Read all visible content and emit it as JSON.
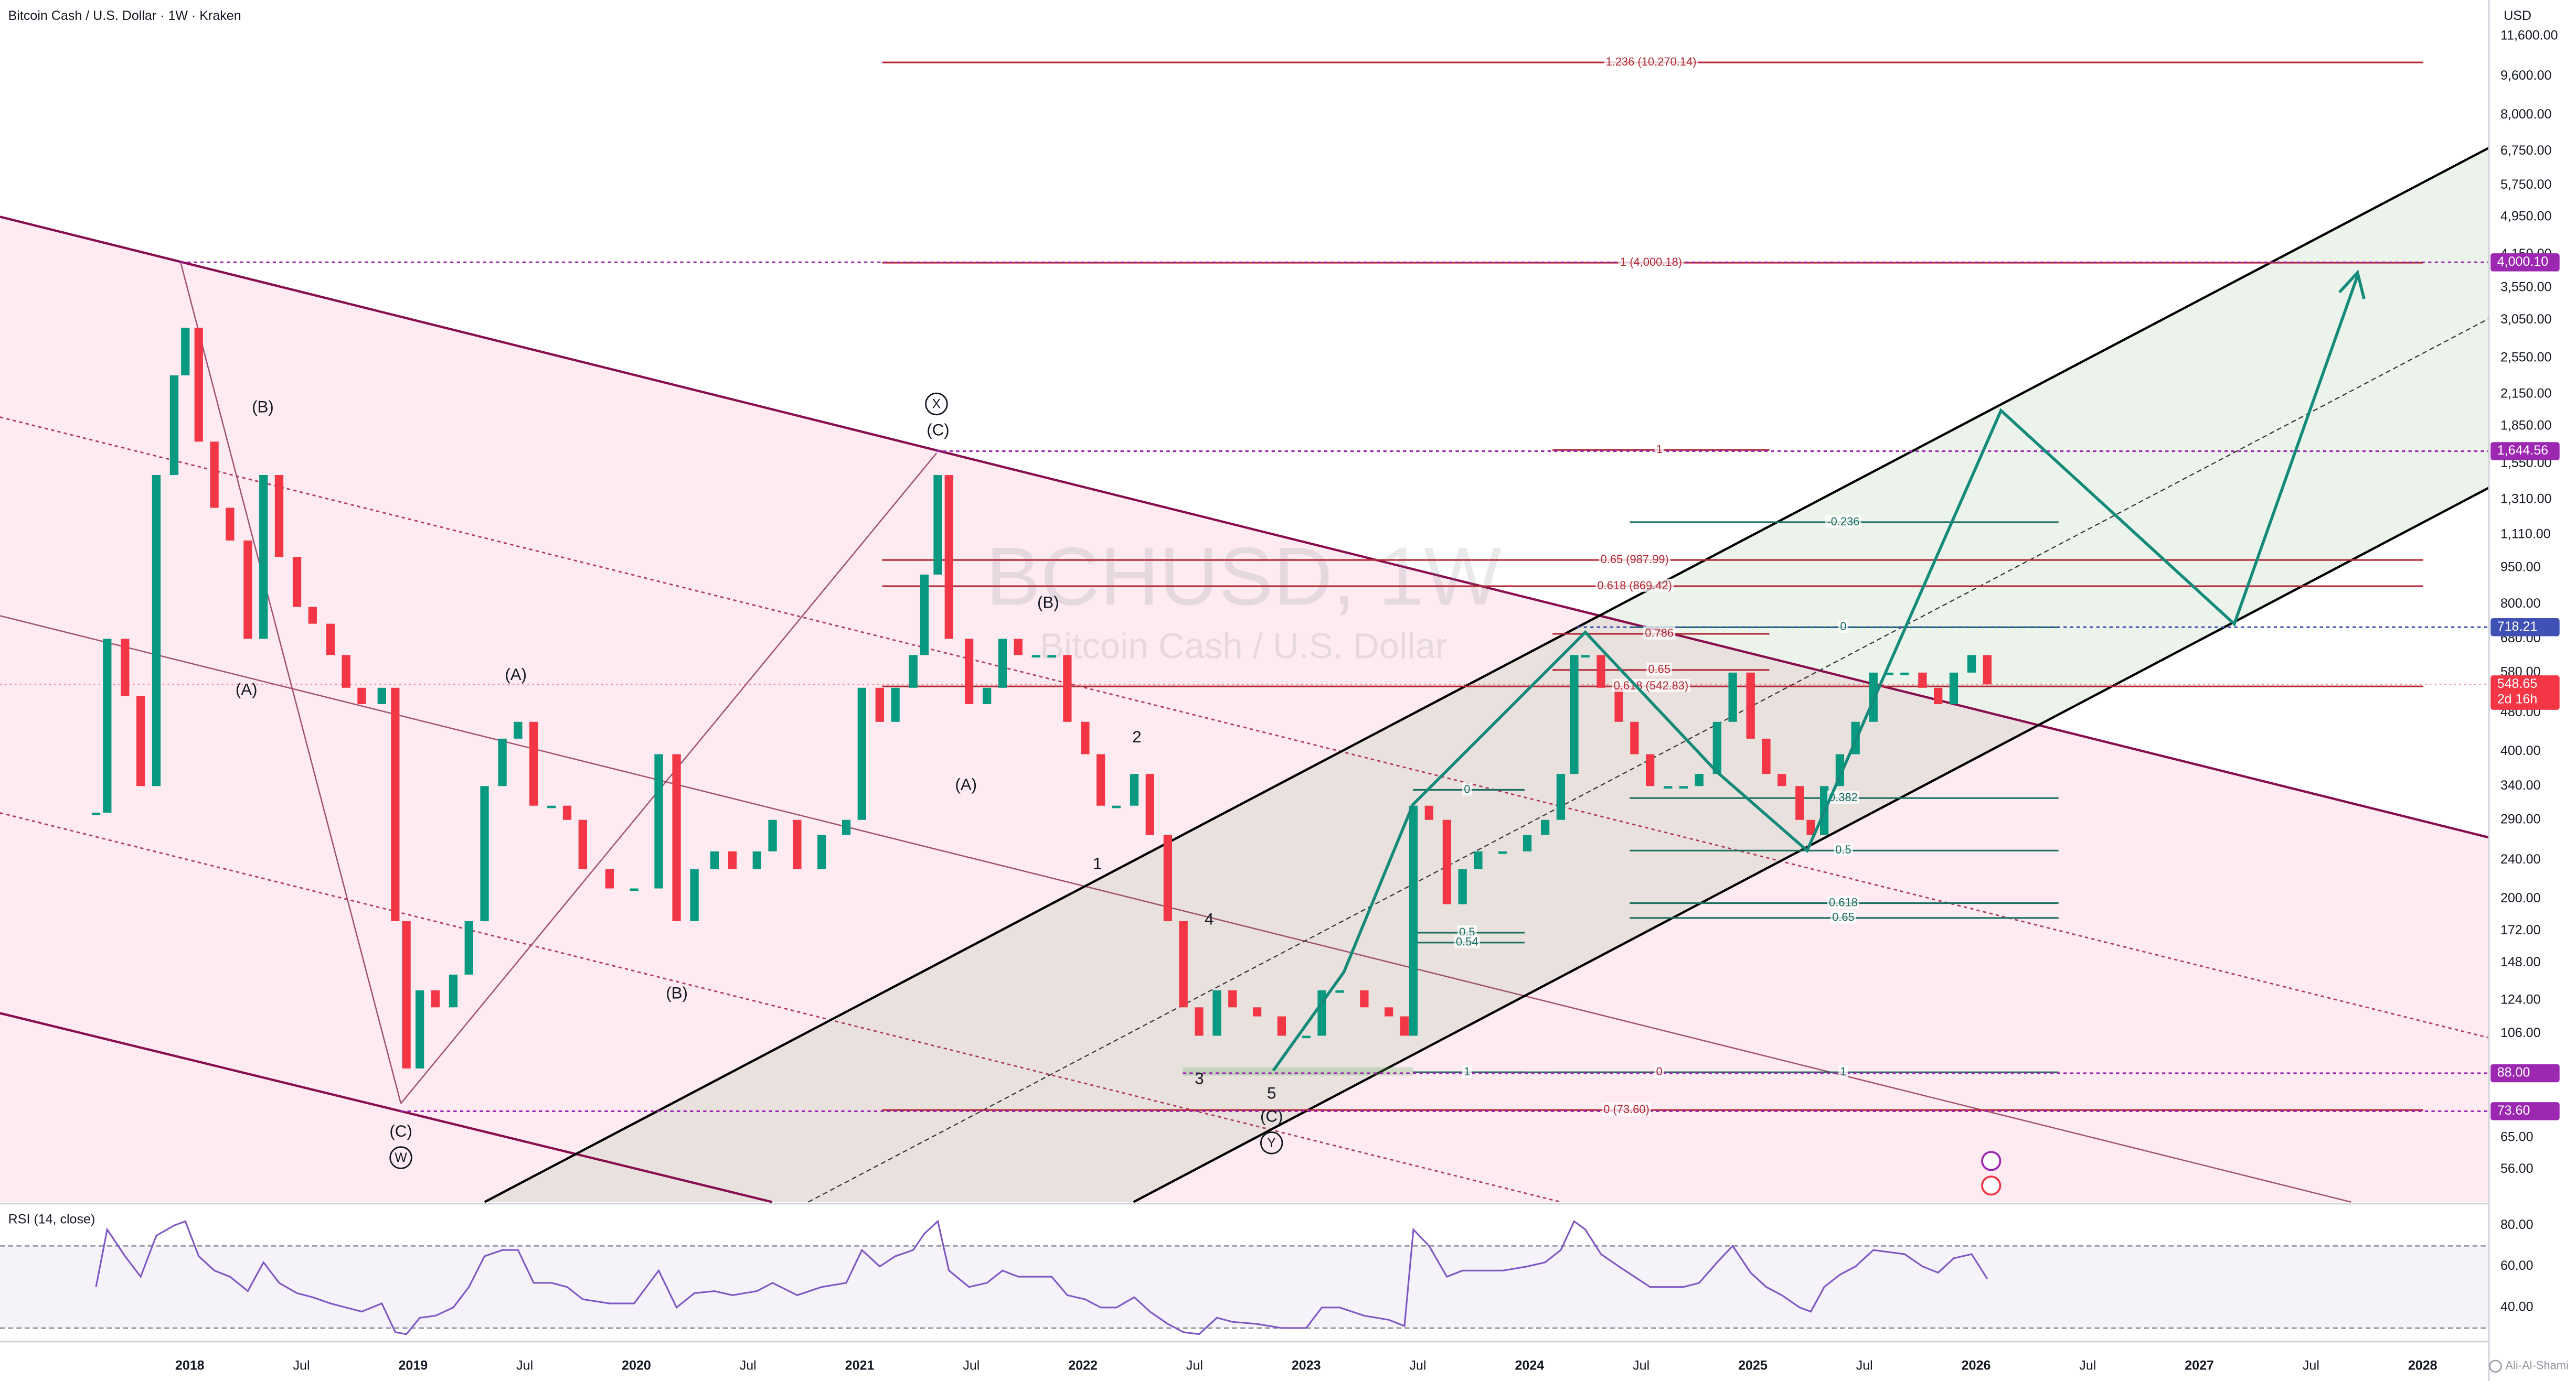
{
  "chart_data": [
    {
      "type": "candlestick",
      "title": "Bitcoin Cash / U.S. Dollar · 1W · Kraken",
      "currency": "USD",
      "log_scale": true,
      "grid": false,
      "up_color": "#089981",
      "down_color": "#f23645",
      "x": [
        2017.58,
        2017.63,
        2017.71,
        2017.78,
        2017.85,
        2017.93,
        2017.98,
        2018.04,
        2018.11,
        2018.18,
        2018.26,
        2018.33,
        2018.4,
        2018.48,
        2018.55,
        2018.63,
        2018.7,
        2018.77,
        2018.86,
        2018.92,
        2018.97,
        2019.03,
        2019.1,
        2019.18,
        2019.25,
        2019.32,
        2019.4,
        2019.47,
        2019.54,
        2019.62,
        2019.69,
        2019.76,
        2019.88,
        2019.99,
        2020.1,
        2020.18,
        2020.26,
        2020.35,
        2020.43,
        2020.54,
        2020.61,
        2020.72,
        2020.83,
        2020.94,
        2021.01,
        2021.09,
        2021.16,
        2021.24,
        2021.29,
        2021.35,
        2021.4,
        2021.49,
        2021.57,
        2021.64,
        2021.71,
        2021.79,
        2021.86,
        2021.93,
        2022.01,
        2022.08,
        2022.15,
        2022.23,
        2022.3,
        2022.38,
        2022.45,
        2022.52,
        2022.6,
        2022.67,
        2022.78,
        2022.89,
        2023.0,
        2023.07,
        2023.15,
        2023.26,
        2023.37,
        2023.44,
        2023.48,
        2023.55,
        2023.63,
        2023.7,
        2023.77,
        2023.88,
        2023.99,
        2024.07,
        2024.14,
        2024.2,
        2024.25,
        2024.32,
        2024.4,
        2024.47,
        2024.54,
        2024.62,
        2024.69,
        2024.76,
        2024.84,
        2024.91,
        2024.99,
        2025.06,
        2025.13,
        2025.21,
        2025.26,
        2025.32,
        2025.39,
        2025.46,
        2025.54,
        2025.61,
        2025.68,
        2025.76,
        2025.83,
        2025.9,
        2025.98,
        2026.05
      ],
      "values": [
        300,
        680,
        520,
        340,
        1470,
        2350,
        2940,
        1720,
        1260,
        1080,
        680,
        1470,
        1000,
        790,
        730,
        630,
        540,
        500,
        540,
        180,
        90,
        130,
        120,
        140,
        180,
        340,
        425,
        460,
        310,
        310,
        290,
        230,
        210,
        210,
        395,
        180,
        230,
        250,
        230,
        250,
        290,
        230,
        270,
        290,
        540,
        460,
        540,
        630,
        920,
        1470,
        680,
        500,
        540,
        680,
        630,
        630,
        630,
        460,
        395,
        310,
        310,
        360,
        270,
        180,
        120,
        105,
        130,
        120,
        115,
        105,
        105,
        130,
        130,
        120,
        115,
        105,
        310,
        290,
        195,
        230,
        250,
        250,
        270,
        290,
        360,
        630,
        630,
        540,
        460,
        395,
        340,
        340,
        340,
        360,
        460,
        580,
        425,
        360,
        340,
        290,
        270,
        340,
        395,
        460,
        580,
        580,
        580,
        540,
        500,
        580,
        630,
        548.65
      ],
      "xlim": [
        2017.15,
        2028.26
      ],
      "xticks": [
        2018,
        {
          "value": 2018.5,
          "label": "Jul"
        },
        2019,
        {
          "value": 2019.5,
          "label": "Jul"
        },
        2020,
        {
          "value": 2020.5,
          "label": "Jul"
        },
        2021,
        {
          "value": 2021.5,
          "label": "Jul"
        },
        2022,
        {
          "value": 2022.5,
          "label": "Jul"
        },
        2023,
        {
          "value": 2023.5,
          "label": "Jul"
        },
        2024,
        {
          "value": 2024.5,
          "label": "Jul"
        },
        2025,
        {
          "value": 2025.5,
          "label": "Jul"
        },
        2026,
        {
          "value": 2026.5,
          "label": "Jul"
        },
        2027,
        {
          "value": 2027.5,
          "label": "Jul"
        },
        2028
      ],
      "ylim": [
        48,
        13750
      ],
      "yticks": [
        {
          "value": 11600,
          "label": "11,600.00"
        },
        {
          "value": 9600,
          "label": "9,600.00"
        },
        {
          "value": 8000,
          "label": "8,000.00"
        },
        {
          "value": 6750,
          "label": "6,750.00"
        },
        {
          "value": 5750,
          "label": "5,750.00"
        },
        {
          "value": 4950,
          "label": "4,950.00"
        },
        {
          "value": 4150,
          "label": "4,150.00"
        },
        {
          "value": 3550,
          "label": "3,550.00"
        },
        {
          "value": 3050,
          "label": "3,050.00"
        },
        {
          "value": 2550,
          "label": "2,550.00"
        },
        {
          "value": 2150,
          "label": "2,150.00"
        },
        {
          "value": 1850,
          "label": "1,850.00"
        },
        {
          "value": 1550,
          "label": "1,550.00"
        },
        {
          "value": 1310,
          "label": "1,310.00"
        },
        {
          "value": 1110,
          "label": "1,110.00"
        },
        {
          "value": 950,
          "label": "950.00"
        },
        {
          "value": 800,
          "label": "800.00"
        },
        {
          "value": 680,
          "label": "680.00"
        },
        {
          "value": 580,
          "label": "580.00"
        },
        {
          "value": 480,
          "label": "480.00"
        },
        {
          "value": 400,
          "label": "400.00"
        },
        {
          "value": 340,
          "label": "340.00"
        },
        {
          "value": 290,
          "label": "290.00"
        },
        {
          "value": 240,
          "label": "240.00"
        },
        {
          "value": 200,
          "label": "200.00"
        },
        {
          "value": 172,
          "label": "172.00"
        },
        {
          "value": 148,
          "label": "148.00"
        },
        {
          "value": 124,
          "label": "124.00"
        },
        {
          "value": 106,
          "label": "106.00"
        },
        {
          "value": 65,
          "label": "65.00"
        },
        {
          "value": 56,
          "label": "56.00"
        }
      ]
    },
    {
      "type": "line",
      "title": "RSI (14, close)",
      "color": "#7e57c2",
      "band_color": "#7e57c2",
      "values": [
        50,
        78,
        65,
        55,
        75,
        80,
        82,
        65,
        58,
        55,
        48,
        62,
        52,
        47,
        45,
        42,
        40,
        38,
        42,
        28,
        27,
        35,
        36,
        40,
        50,
        65,
        68,
        68,
        52,
        52,
        50,
        44,
        42,
        42,
        58,
        40,
        47,
        48,
        46,
        48,
        52,
        46,
        50,
        52,
        68,
        60,
        65,
        68,
        76,
        82,
        58,
        50,
        52,
        58,
        55,
        55,
        55,
        46,
        44,
        40,
        40,
        45,
        38,
        32,
        28,
        27,
        35,
        33,
        32,
        30,
        30,
        40,
        40,
        36,
        34,
        31,
        78,
        70,
        55,
        58,
        58,
        58,
        60,
        62,
        68,
        82,
        78,
        66,
        60,
        55,
        50,
        50,
        50,
        52,
        62,
        70,
        57,
        50,
        46,
        40,
        38,
        50,
        56,
        60,
        68,
        67,
        66,
        60,
        57,
        64,
        66,
        54
      ],
      "ylim": [
        25,
        89
      ],
      "yticks": [
        {
          "value": 80,
          "label": "80.00"
        },
        {
          "value": 60,
          "label": "60.00"
        },
        {
          "value": 40,
          "label": "40.00"
        }
      ],
      "bands": [
        70,
        30
      ]
    }
  ],
  "annotations": {
    "watermark_symbol": "BCHUSD, 1W",
    "watermark_description": "Bitcoin Cash / U.S. Dollar",
    "wave_labels": [
      "(B)",
      "(A)",
      "(C)",
      "W",
      "(A)",
      "(B)",
      "X",
      "(C)",
      "(B)",
      "(A)",
      "2",
      "1",
      "4",
      "3",
      "5",
      "(C)",
      "Y"
    ],
    "fib_labels": [
      "1.236 (10,270.14)",
      "1 (4,000.18)",
      "1",
      "0.65 (987.99)",
      "0.618 (869.42)",
      "0.786",
      "0.65",
      "0.618 (542.83)",
      "0",
      "0 (73.60)",
      "-0.236",
      "0",
      "0.382",
      "0.5",
      "0.618",
      "0.65",
      "1",
      "0.5",
      "0.54",
      "1",
      "0"
    ],
    "price_tags": [
      {
        "value": 4000.1,
        "label": "4,000.10"
      },
      {
        "value": 1644.56,
        "label": "1,644.56"
      },
      {
        "value": 718.21,
        "label": "718.21"
      },
      {
        "value": 548.65,
        "label": "548.65"
      },
      {
        "value": 88,
        "label": "88.00"
      },
      {
        "value": 73.6,
        "label": "73.60"
      }
    ],
    "countdown": "2d 16h",
    "author": "Ali-Al-Shami"
  }
}
